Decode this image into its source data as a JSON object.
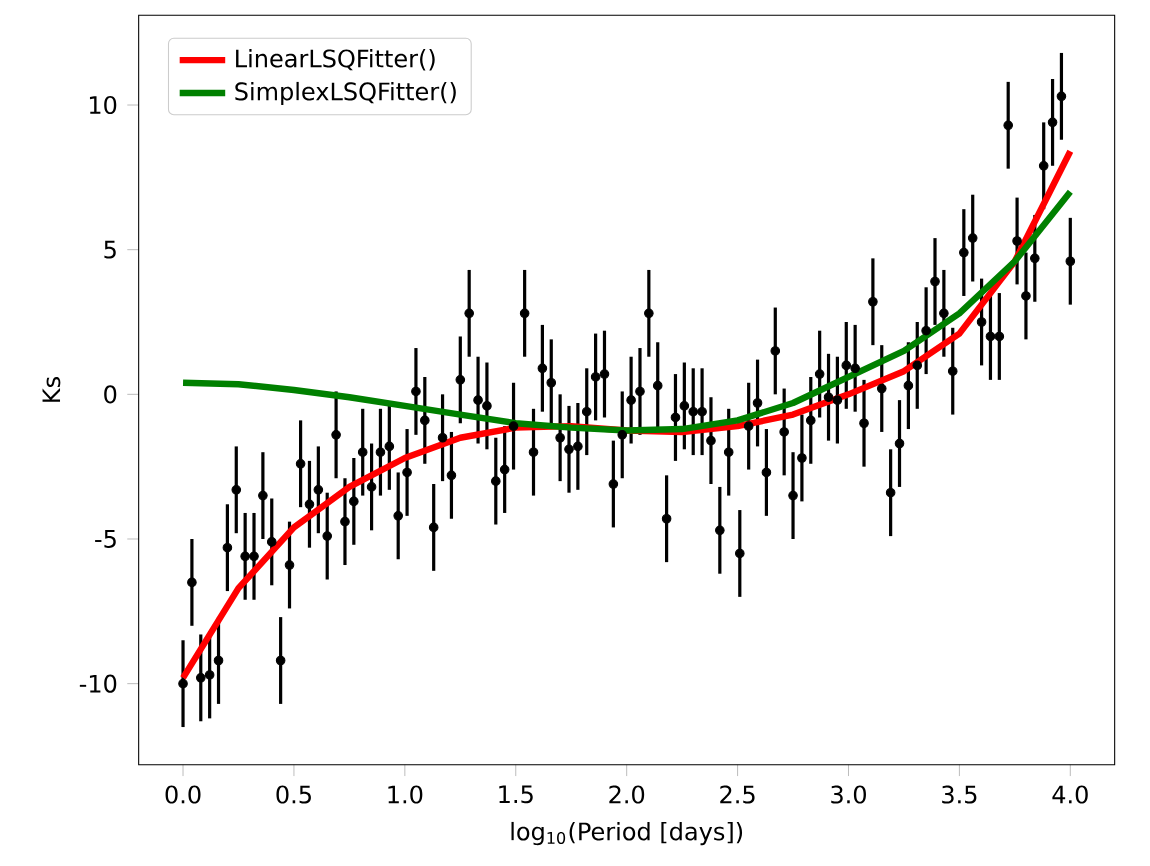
{
  "chart_data": {
    "type": "scatter",
    "xlabel": "log$_{10}$(Period [days])",
    "ylabel": "Ks",
    "xlim": [
      -0.2,
      4.2
    ],
    "ylim": [
      -12.8,
      13.1
    ],
    "xticks": [
      {
        "value": 0,
        "label": "0.0"
      },
      {
        "value": 0.5,
        "label": "0.5"
      },
      {
        "value": 1,
        "label": "1.0"
      },
      {
        "value": 1.5,
        "label": "1.5"
      },
      {
        "value": 2,
        "label": "2.0"
      },
      {
        "value": 2.5,
        "label": "2.5"
      },
      {
        "value": 3,
        "label": "3.0"
      },
      {
        "value": 3.5,
        "label": "3.5"
      },
      {
        "value": 4,
        "label": "4.0"
      }
    ],
    "yticks": [
      -10,
      -5,
      0,
      5,
      10
    ],
    "legend": "top left",
    "series": [
      {
        "color": "#000000",
        "marker": "circle",
        "x": [
          0.0,
          0.04,
          0.08,
          0.12,
          0.16,
          0.2,
          0.24,
          0.28,
          0.32,
          0.36,
          0.4,
          0.44,
          0.48,
          0.53,
          0.57,
          0.61,
          0.65,
          0.69,
          0.73,
          0.77,
          0.81,
          0.85,
          0.89,
          0.93,
          0.97,
          1.01,
          1.05,
          1.09,
          1.13,
          1.17,
          1.21,
          1.25,
          1.29,
          1.33,
          1.37,
          1.41,
          1.45,
          1.49,
          1.54,
          1.58,
          1.62,
          1.66,
          1.7,
          1.74,
          1.78,
          1.82,
          1.86,
          1.9,
          1.94,
          1.98,
          2.02,
          2.06,
          2.1,
          2.14,
          2.18,
          2.22,
          2.26,
          2.3,
          2.34,
          2.38,
          2.42,
          2.46,
          2.51,
          2.55,
          2.59,
          2.63,
          2.67,
          2.71,
          2.75,
          2.79,
          2.83,
          2.87,
          2.91,
          2.95,
          2.99,
          3.03,
          3.07,
          3.11,
          3.15,
          3.19,
          3.23,
          3.27,
          3.31,
          3.35,
          3.39,
          3.43,
          3.47,
          3.52,
          3.56,
          3.6,
          3.64,
          3.68,
          3.72,
          3.76,
          3.8,
          3.84,
          3.88,
          3.92,
          3.96,
          4.0
        ],
        "values": [
          -10.0,
          -6.5,
          -9.8,
          -9.7,
          -9.2,
          -5.3,
          -3.3,
          -5.6,
          -5.6,
          -3.5,
          -5.1,
          -9.2,
          -5.9,
          -2.4,
          -3.8,
          -3.3,
          -4.9,
          -1.4,
          -4.4,
          -3.7,
          -2.0,
          -3.2,
          -2.0,
          -1.8,
          -4.2,
          -2.7,
          0.1,
          -0.9,
          -4.6,
          -1.5,
          -2.8,
          0.5,
          2.8,
          -0.2,
          -0.4,
          -3.0,
          -2.6,
          -1.1,
          2.8,
          -2.0,
          0.9,
          0.4,
          -1.5,
          -1.9,
          -1.8,
          -0.6,
          0.6,
          0.7,
          -3.1,
          -1.4,
          -0.2,
          0.1,
          2.8,
          0.3,
          -4.3,
          -0.8,
          -0.4,
          -0.6,
          -0.6,
          -1.6,
          -4.7,
          -2.0,
          -5.5,
          -1.1,
          -0.3,
          -2.7,
          1.5,
          -1.3,
          -3.5,
          -2.2,
          -0.9,
          0.7,
          -0.1,
          -0.2,
          1.0,
          0.9,
          -1.0,
          3.2,
          0.2,
          -3.4,
          -1.7,
          0.3,
          1.0,
          2.2,
          3.9,
          2.8,
          0.8,
          4.9,
          5.4,
          2.5,
          2.0,
          2.0,
          9.3,
          5.3,
          3.4,
          4.7,
          7.9,
          9.4,
          10.3,
          4.6
        ],
        "errors": [
          1.5,
          1.5,
          1.5,
          1.5,
          1.5,
          1.5,
          1.5,
          1.5,
          1.5,
          1.5,
          1.5,
          1.5,
          1.5,
          1.5,
          1.5,
          1.5,
          1.5,
          1.5,
          1.5,
          1.5,
          1.5,
          1.5,
          1.5,
          1.5,
          1.5,
          1.5,
          1.5,
          1.5,
          1.5,
          1.5,
          1.5,
          1.5,
          1.5,
          1.5,
          1.5,
          1.5,
          1.5,
          1.5,
          1.5,
          1.5,
          1.5,
          1.5,
          1.5,
          1.5,
          1.5,
          1.5,
          1.5,
          1.5,
          1.5,
          1.5,
          1.5,
          1.5,
          1.5,
          1.5,
          1.5,
          1.5,
          1.5,
          1.5,
          1.5,
          1.5,
          1.5,
          1.5,
          1.5,
          1.5,
          1.5,
          1.5,
          1.5,
          1.5,
          1.5,
          1.5,
          1.5,
          1.5,
          1.5,
          1.5,
          1.5,
          1.5,
          1.5,
          1.5,
          1.5,
          1.5,
          1.5,
          1.5,
          1.5,
          1.5,
          1.5,
          1.5,
          1.5,
          1.5,
          1.5,
          1.5,
          1.5,
          1.5,
          1.5,
          1.5,
          1.5,
          1.5,
          1.5,
          1.5,
          1.5,
          1.5
        ]
      },
      {
        "type": "line",
        "name": "LinearLSQFitter()",
        "color": "#ff0000",
        "marker": "none",
        "line_style": "solid",
        "x": [
          0,
          0.25,
          0.5,
          0.75,
          1.0,
          1.25,
          1.5,
          1.75,
          2.0,
          2.25,
          2.5,
          2.75,
          3.0,
          3.25,
          3.5,
          3.75,
          4.0
        ],
        "values": [
          -9.8,
          -6.7,
          -4.6,
          -3.2,
          -2.2,
          -1.5,
          -1.15,
          -1.1,
          -1.25,
          -1.3,
          -1.1,
          -0.7,
          0.0,
          0.8,
          2.1,
          4.6,
          8.4
        ]
      },
      {
        "type": "line",
        "name": "SimplexLSQFitter()",
        "color": "#008000",
        "marker": "none",
        "line_style": "solid",
        "x": [
          0,
          0.25,
          0.5,
          0.75,
          1.0,
          1.25,
          1.5,
          1.75,
          2.0,
          2.25,
          2.5,
          2.75,
          3.0,
          3.25,
          3.5,
          3.75,
          4.0
        ],
        "values": [
          0.4,
          0.35,
          0.15,
          -0.1,
          -0.4,
          -0.7,
          -1.0,
          -1.15,
          -1.25,
          -1.2,
          -0.9,
          -0.3,
          0.6,
          1.5,
          2.8,
          4.6,
          7.0
        ]
      }
    ]
  }
}
